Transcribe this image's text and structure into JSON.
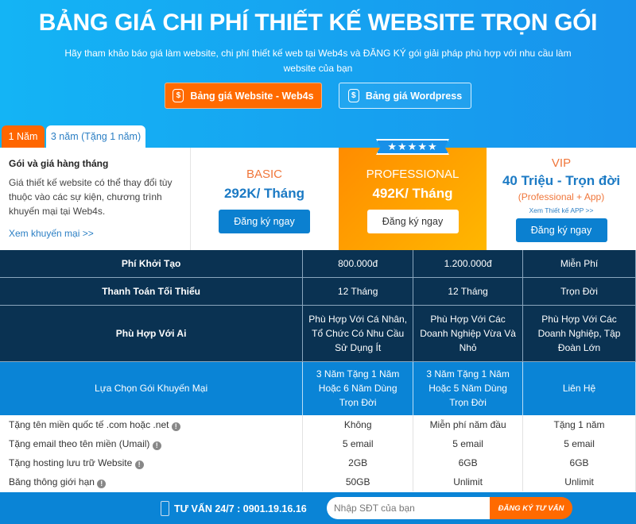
{
  "header": {
    "title": "BẢNG GIÁ CHI PHÍ THIẾT KẾ WEBSITE TRỌN GÓI",
    "subtitle": "Hãy tham khảo báo giá làm website, chi phí thiết kế web tại Web4s và ĐĂNG KÝ gói giải pháp phù hợp với nhu cầu làm website của bạn",
    "buttons": [
      {
        "label": "Bảng giá Website - Web4s",
        "icon": "dollar-icon"
      },
      {
        "label": "Bảng giá Wordpress",
        "icon": "dollar-icon"
      }
    ]
  },
  "tabs": [
    {
      "label": "1 Năm",
      "active": true
    },
    {
      "label": "3 năm (Tặng 1 năm)",
      "active": false
    }
  ],
  "intro": {
    "heading": "Gói và giá hàng tháng",
    "text": "Giá thiết kế website có thể thay đổi tùy thuộc vào các sự kiện, chương trình khuyến mại tại Web4s.",
    "link": "Xem khuyến mại >>"
  },
  "plans": [
    {
      "name": "BASIC",
      "price": "292K/ Tháng",
      "button": "Đăng ký ngay"
    },
    {
      "name": "PROFESSIONAL",
      "price": "492K/ Tháng",
      "button": "Đăng ký ngay",
      "ribbon": "★★★★★"
    },
    {
      "name": "VIP",
      "price": "40 Triệu - Trọn đời",
      "note": "(Professional + App)",
      "link": "Xem Thiết kế APP >>",
      "button": "Đăng ký ngay"
    }
  ],
  "rows": [
    [
      "Phí Khởi Tạo",
      "800.000đ",
      "1.200.000đ",
      "Miễn Phí"
    ],
    [
      "Thanh Toán Tối Thiểu",
      "12 Tháng",
      "12 Tháng",
      "Trọn Đời"
    ],
    [
      "Phù Hợp Với Ai",
      "Phù Hợp Với Cá Nhân, Tổ Chức Có Nhu Cầu Sử Dụng Ít",
      "Phù Hợp Với Các Doanh Nghiệp Vừa Và Nhỏ",
      "Phù Hợp Với Các Doanh Nghiệp, Tập Đoàn Lớn"
    ],
    [
      "Lựa Chọn Gói Khuyến Mại",
      "3 Năm Tặng 1 Năm Hoặc 6 Năm Dùng Trọn Đời",
      "3 Năm Tặng 1 Năm Hoặc 5 Năm Dùng Trọn Đời",
      "Liên Hệ"
    ]
  ],
  "features": [
    [
      "Tặng tên miền quốc tế .com hoặc .net",
      "Không",
      "Miễn phí năm đầu",
      "Tặng 1 năm"
    ],
    [
      "Tặng email theo tên miền (Umail)",
      "5 email",
      "5 email",
      "5 email"
    ],
    [
      "Tặng hosting lưu trữ Website",
      "2GB",
      "6GB",
      "6GB"
    ],
    [
      "Băng thông giới hạn",
      "50GB",
      "Unlimit",
      "Unlimit"
    ]
  ],
  "footer": {
    "hotline": "TƯ VẤN 24/7 : 0901.19.16.16",
    "placeholder": "Nhập SĐT của bạn",
    "button": "ĐĂNG KÝ TƯ VẤN"
  },
  "colors": {
    "accent": "#ff6a00",
    "primary": "#0a84d6",
    "navy": "#0a3252"
  }
}
